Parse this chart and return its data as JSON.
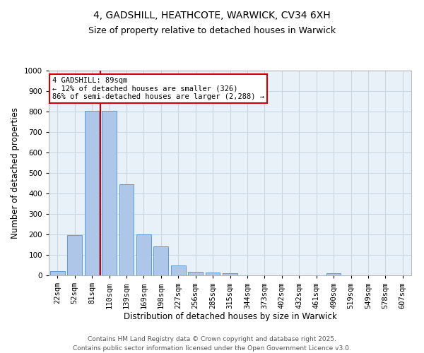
{
  "title1": "4, GADSHILL, HEATHCOTE, WARWICK, CV34 6XH",
  "title2": "Size of property relative to detached houses in Warwick",
  "xlabel": "Distribution of detached houses by size in Warwick",
  "ylabel": "Number of detached properties",
  "categories": [
    "22sqm",
    "52sqm",
    "81sqm",
    "110sqm",
    "139sqm",
    "169sqm",
    "198sqm",
    "227sqm",
    "256sqm",
    "285sqm",
    "315sqm",
    "344sqm",
    "373sqm",
    "402sqm",
    "432sqm",
    "461sqm",
    "490sqm",
    "519sqm",
    "549sqm",
    "578sqm",
    "607sqm"
  ],
  "values": [
    20,
    195,
    805,
    805,
    445,
    200,
    140,
    50,
    18,
    13,
    10,
    0,
    0,
    0,
    0,
    0,
    10,
    0,
    0,
    0,
    0
  ],
  "bar_color": "#aec6e8",
  "bar_edge_color": "#5b9bd5",
  "vline_x_idx": 2,
  "vline_color": "#cc0000",
  "annotation_text": "4 GADSHILL: 89sqm\n← 12% of detached houses are smaller (326)\n86% of semi-detached houses are larger (2,288) →",
  "annotation_box_color": "#cc0000",
  "ylim": [
    0,
    1000
  ],
  "yticks": [
    0,
    100,
    200,
    300,
    400,
    500,
    600,
    700,
    800,
    900,
    1000
  ],
  "grid_color": "#c8d4e0",
  "bg_color": "#e8f0f8",
  "footer1": "Contains HM Land Registry data © Crown copyright and database right 2025.",
  "footer2": "Contains public sector information licensed under the Open Government Licence v3.0.",
  "title1_fontsize": 10,
  "title2_fontsize": 9,
  "xlabel_fontsize": 8.5,
  "ylabel_fontsize": 8.5,
  "tick_fontsize": 7.5,
  "footer_fontsize": 6.5
}
